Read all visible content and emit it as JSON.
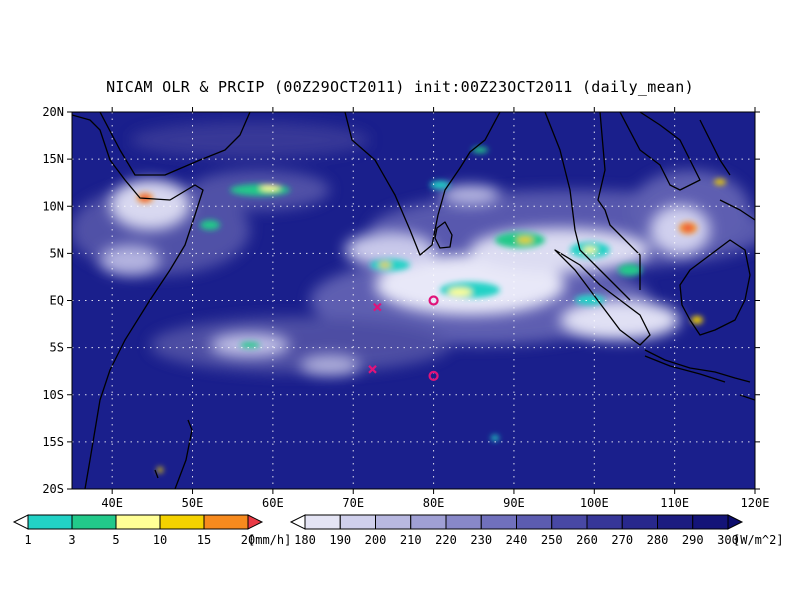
{
  "title": "NICAM OLR & PRCIP (00Z29OCT2011) init:00Z23OCT2011 (daily_mean)",
  "map": {
    "lon_range": [
      35,
      120
    ],
    "lat_range": [
      -20,
      20
    ],
    "lat_labels": [
      "20N",
      "15N",
      "10N",
      "5N",
      "EQ",
      "5S",
      "10S",
      "15S",
      "20S"
    ],
    "lon_labels": [
      "40E",
      "50E",
      "60E",
      "70E",
      "80E",
      "90E",
      "100E",
      "110E",
      "120E"
    ],
    "ocean_color": "#1a1f8c",
    "markers": [
      {
        "symbol": "x",
        "lon": 73,
        "lat": -0.7,
        "color": "#e0147a"
      },
      {
        "symbol": "x",
        "lon": 72.4,
        "lat": -7.3,
        "color": "#e0147a"
      },
      {
        "symbol": "o",
        "lon": 80,
        "lat": 0,
        "color": "#e0147a"
      },
      {
        "symbol": "o",
        "lon": 80,
        "lat": -8,
        "color": "#e0147a"
      }
    ]
  },
  "precip_legend": {
    "labels": [
      "1",
      "3",
      "5",
      "10",
      "15",
      "20"
    ],
    "unit": "[mm/h]",
    "colors": [
      "#ffffff",
      "#22d2c6",
      "#22c98a",
      "#ffff96",
      "#f4d200",
      "#f78a1e",
      "#ea3a46"
    ]
  },
  "olr_legend": {
    "labels": [
      "180",
      "190",
      "200",
      "210",
      "220",
      "230",
      "240",
      "250",
      "260",
      "270",
      "280",
      "290",
      "300"
    ],
    "unit": "[W/m^2]",
    "colors": [
      "#ffffff",
      "#e4e4f4",
      "#d0d0ec",
      "#b8b8e0",
      "#a0a0d4",
      "#8888c8",
      "#7070bc",
      "#5c5cb0",
      "#4848a4",
      "#363698",
      "#28288c",
      "#1c1c80",
      "#141478",
      "#0c0c6c"
    ]
  }
}
